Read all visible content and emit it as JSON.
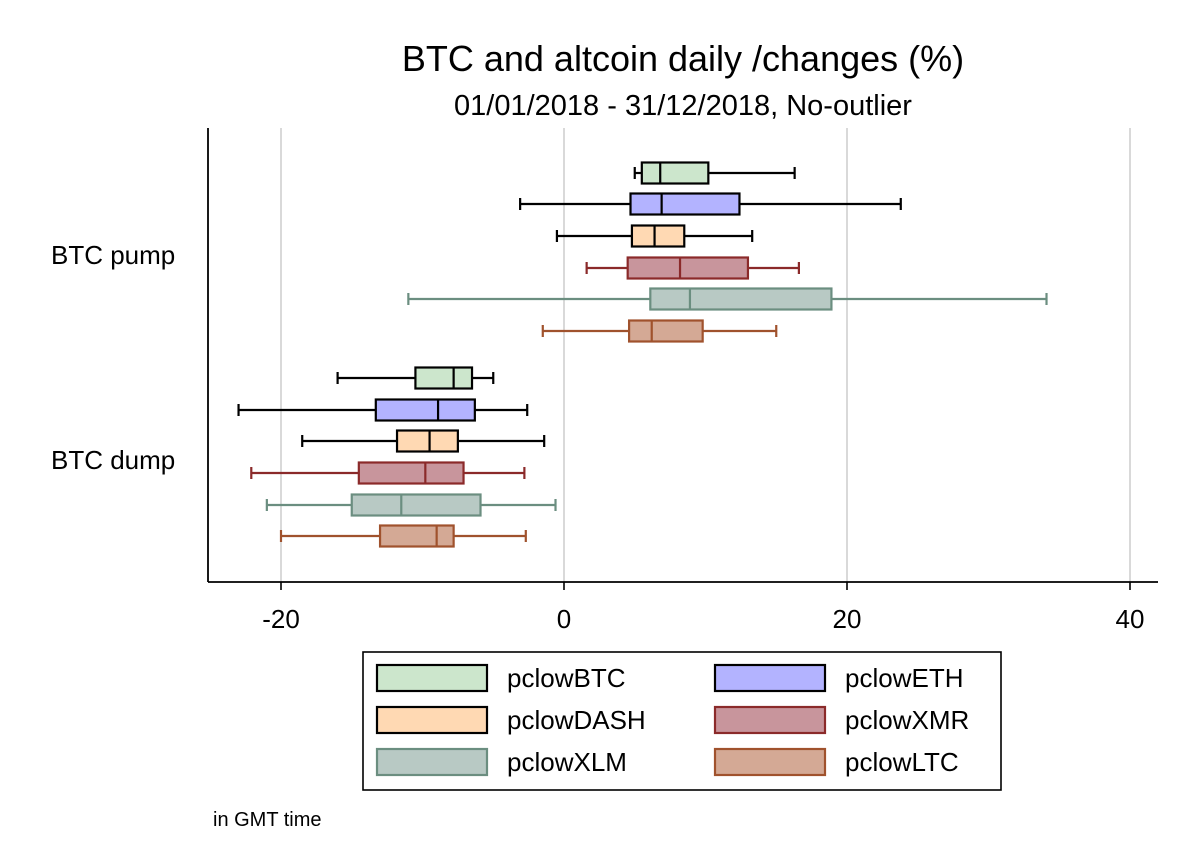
{
  "chart_data": {
    "type": "boxplot-horizontal",
    "title": "BTC and altcoin daily /changes (%)",
    "subtitle": "01/01/2018 - 31/12/2018, No-outlier",
    "note": "in GMT time",
    "xlim": [
      -25,
      42
    ],
    "xticks": [
      -20,
      0,
      20,
      40
    ],
    "grid": true,
    "legend_position": "bottom",
    "categories": [
      "BTC pump",
      "BTC dump"
    ],
    "series": [
      {
        "name": "pclowBTC",
        "fill": "#cce6cc",
        "stroke": "#000000",
        "boxes": [
          {
            "category": "BTC pump",
            "min": 5.0,
            "q1": 5.5,
            "median": 6.8,
            "q3": 10.2,
            "max": 16.3
          },
          {
            "category": "BTC dump",
            "min": -16.0,
            "q1": -10.5,
            "median": -7.8,
            "q3": -6.5,
            "max": -5.0
          }
        ]
      },
      {
        "name": "pclowETH",
        "fill": "#b3b3ff",
        "stroke": "#000000",
        "boxes": [
          {
            "category": "BTC pump",
            "min": -3.1,
            "q1": 4.7,
            "median": 6.9,
            "q3": 12.4,
            "max": 23.8
          },
          {
            "category": "BTC dump",
            "min": -23.0,
            "q1": -13.3,
            "median": -8.9,
            "q3": -6.3,
            "max": -2.6
          }
        ]
      },
      {
        "name": "pclowDASH",
        "fill": "#ffd9b3",
        "stroke": "#000000",
        "boxes": [
          {
            "category": "BTC pump",
            "min": -0.5,
            "q1": 4.8,
            "median": 6.4,
            "q3": 8.5,
            "max": 13.3
          },
          {
            "category": "BTC dump",
            "min": -18.5,
            "q1": -11.8,
            "median": -9.5,
            "q3": -7.5,
            "max": -1.4
          }
        ]
      },
      {
        "name": "pclowXMR",
        "fill": "#c8959c",
        "stroke": "#8b2a2a",
        "boxes": [
          {
            "category": "BTC pump",
            "min": 1.6,
            "q1": 4.5,
            "median": 8.2,
            "q3": 13.0,
            "max": 16.6
          },
          {
            "category": "BTC dump",
            "min": -22.1,
            "q1": -14.5,
            "median": -9.8,
            "q3": -7.1,
            "max": -2.8
          }
        ]
      },
      {
        "name": "pclowXLM",
        "fill": "#b8c9c4",
        "stroke": "#6b8e80",
        "boxes": [
          {
            "category": "BTC pump",
            "min": -11.0,
            "q1": 6.1,
            "median": 8.9,
            "q3": 18.9,
            "max": 34.1
          },
          {
            "category": "BTC dump",
            "min": -21.0,
            "q1": -15.0,
            "median": -11.5,
            "q3": -5.9,
            "max": -0.6
          }
        ]
      },
      {
        "name": "pclowLTC",
        "fill": "#d4a995",
        "stroke": "#a0522d",
        "boxes": [
          {
            "category": "BTC pump",
            "min": -1.5,
            "q1": 4.6,
            "median": 6.2,
            "q3": 9.8,
            "max": 15.0
          },
          {
            "category": "BTC dump",
            "min": -20.0,
            "q1": -13.0,
            "median": -9.0,
            "q3": -7.8,
            "max": -2.7
          }
        ]
      }
    ]
  }
}
